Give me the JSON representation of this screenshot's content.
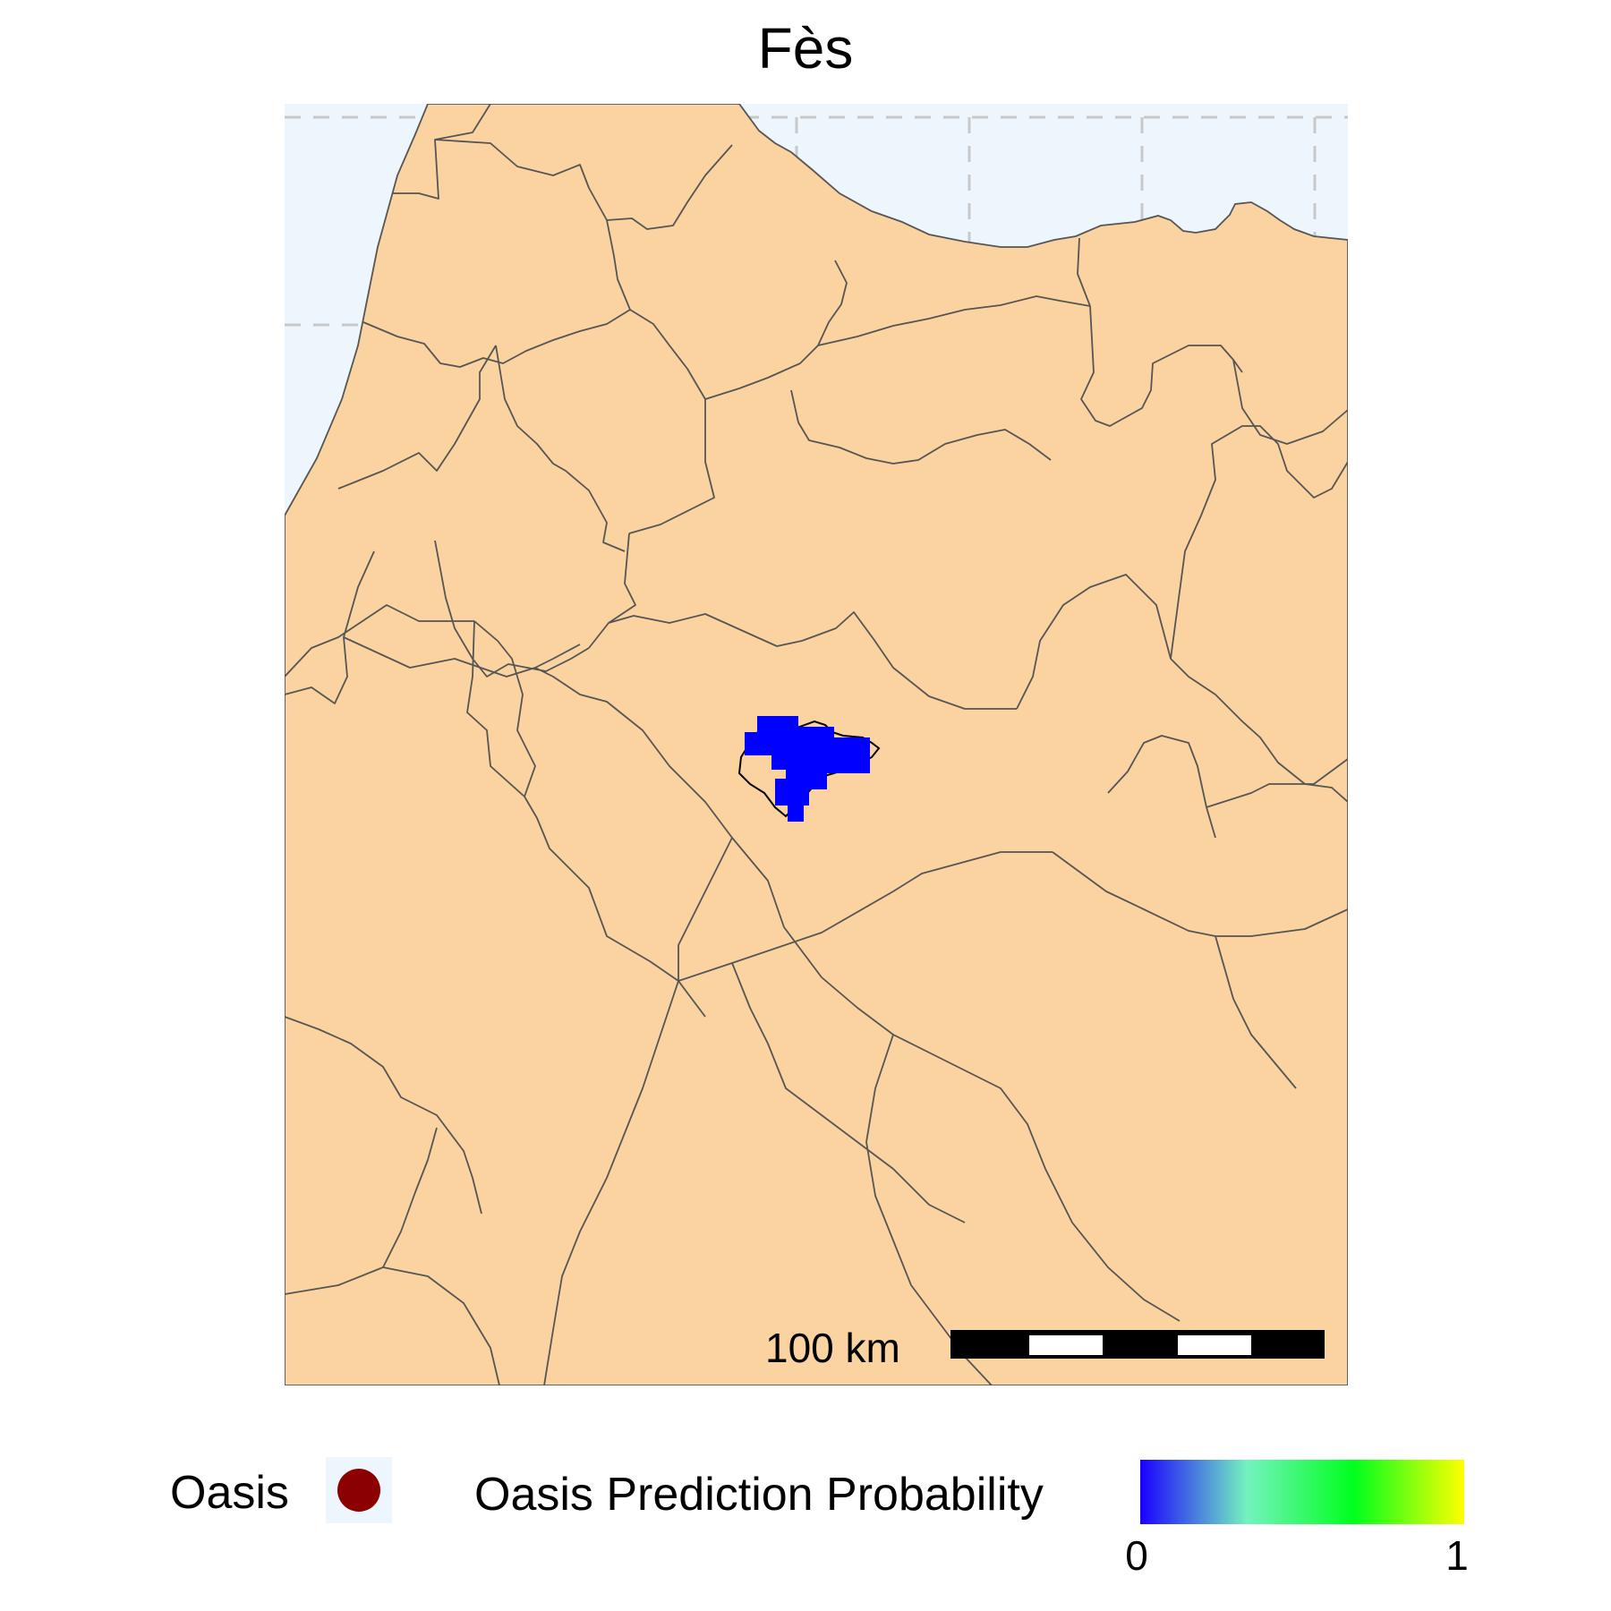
{
  "title": "Fès",
  "scale_bar": {
    "label": "100 km"
  },
  "legend": {
    "oasis_label": "Oasis",
    "oasis_color": "#8b0000",
    "probability_label": "Oasis Prediction Probability",
    "gradient_colors": [
      "#1a00ff",
      "#74f2c0",
      "#00ff1e",
      "#ffff00"
    ],
    "ticks": [
      "0",
      "1"
    ]
  },
  "colors": {
    "land": "#fbd3a0",
    "water": "#eef6fd",
    "borders": "#555555",
    "grid": "#c8c8c8",
    "prediction": "#0000ff"
  },
  "map": {
    "highlighted_city": "Fès",
    "predicted_probability": 0
  }
}
